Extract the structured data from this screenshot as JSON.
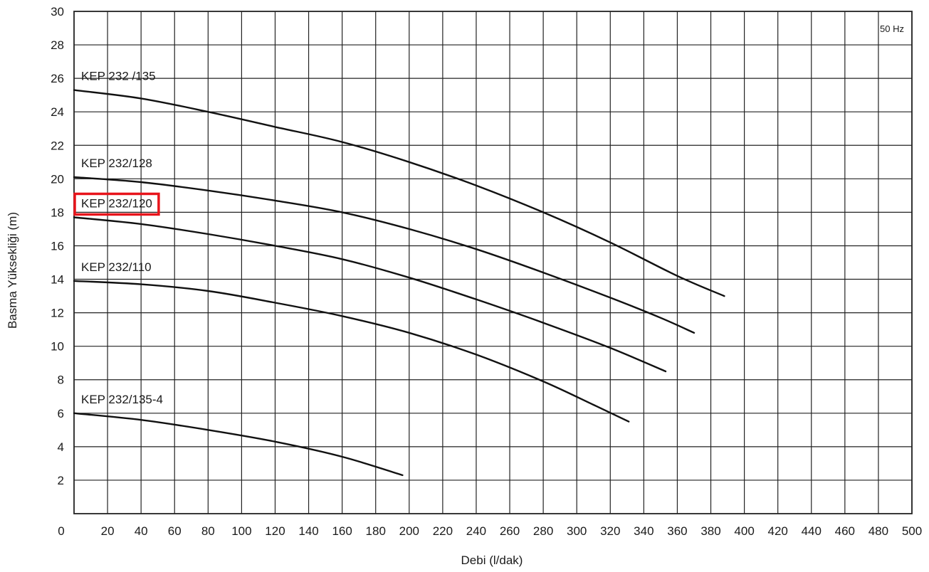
{
  "chart_data": {
    "type": "line",
    "title": "",
    "xlabel": "Debi (l/dak)",
    "ylabel": "Basma Yüksekliği (m)",
    "xlim": [
      0,
      500
    ],
    "ylim": [
      0,
      30
    ],
    "x_ticks": [
      0,
      20,
      40,
      60,
      80,
      100,
      120,
      140,
      160,
      180,
      200,
      220,
      240,
      260,
      280,
      300,
      320,
      340,
      360,
      380,
      400,
      420,
      440,
      460,
      480,
      500
    ],
    "y_ticks": [
      2,
      4,
      6,
      8,
      10,
      12,
      14,
      16,
      18,
      20,
      22,
      24,
      26,
      28,
      30
    ],
    "grid": true,
    "annotation": "50 Hz",
    "highlight_color": "#e8141b",
    "series": [
      {
        "name": "KEP 232 /135",
        "highlighted": false,
        "x": [
          0,
          40,
          80,
          120,
          160,
          200,
          240,
          280,
          320,
          360,
          388
        ],
        "y": [
          25.3,
          24.8,
          24.0,
          23.1,
          22.2,
          21.0,
          19.6,
          18.0,
          16.2,
          14.2,
          13.0
        ]
      },
      {
        "name": "KEP 232/128",
        "highlighted": false,
        "x": [
          0,
          40,
          80,
          120,
          160,
          200,
          240,
          280,
          320,
          350,
          370
        ],
        "y": [
          20.1,
          19.8,
          19.3,
          18.7,
          18.0,
          17.0,
          15.8,
          14.4,
          12.9,
          11.7,
          10.8
        ]
      },
      {
        "name": "KEP 232/120",
        "highlighted": true,
        "x": [
          0,
          40,
          80,
          120,
          160,
          200,
          240,
          280,
          320,
          353
        ],
        "y": [
          17.7,
          17.3,
          16.7,
          16.0,
          15.2,
          14.1,
          12.8,
          11.4,
          9.9,
          8.5
        ]
      },
      {
        "name": "KEP 232/110",
        "highlighted": false,
        "x": [
          0,
          40,
          80,
          120,
          160,
          200,
          240,
          280,
          310,
          331
        ],
        "y": [
          13.9,
          13.7,
          13.3,
          12.6,
          11.8,
          10.8,
          9.5,
          7.9,
          6.5,
          5.5
        ]
      },
      {
        "name": "KEP 232/135-4",
        "highlighted": false,
        "x": [
          0,
          40,
          80,
          120,
          160,
          196
        ],
        "y": [
          6.0,
          5.6,
          5.0,
          4.3,
          3.4,
          2.3
        ]
      }
    ]
  }
}
